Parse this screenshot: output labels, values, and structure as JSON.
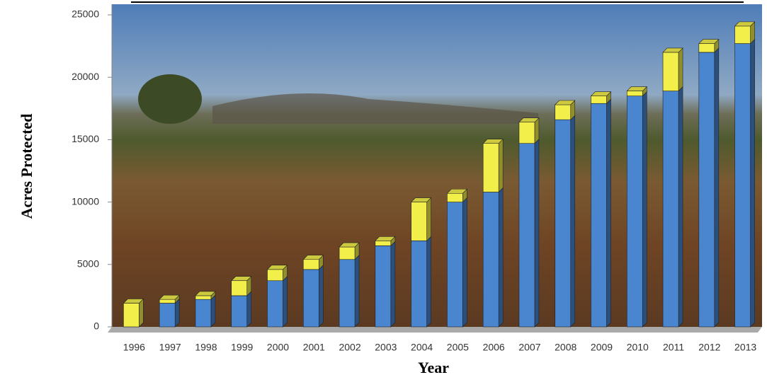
{
  "chart_data": {
    "type": "bar",
    "stacked": true,
    "x_label": "Year",
    "y_label": "Acres Protected",
    "categories": [
      "1996",
      "1997",
      "1998",
      "1999",
      "2000",
      "2001",
      "2002",
      "2003",
      "2004",
      "2005",
      "2006",
      "2007",
      "2008",
      "2009",
      "2010",
      "2011",
      "2012",
      "2013"
    ],
    "series": [
      {
        "color": "#4a86d0",
        "values": [
          0,
          1900,
          2200,
          2500,
          3700,
          4600,
          5400,
          6500,
          6900,
          10000,
          10800,
          14700,
          16600,
          17900,
          18500,
          18900,
          22000,
          22700
        ]
      },
      {
        "color": "#f2ee4a",
        "values": [
          1900,
          300,
          300,
          1200,
          900,
          800,
          1000,
          400,
          3100,
          700,
          3900,
          1700,
          1200,
          600,
          400,
          3100,
          700,
          1400
        ]
      }
    ],
    "ylim": [
      0,
      25000
    ],
    "yticks": [
      0,
      5000,
      10000,
      15000,
      20000,
      25000
    ]
  }
}
